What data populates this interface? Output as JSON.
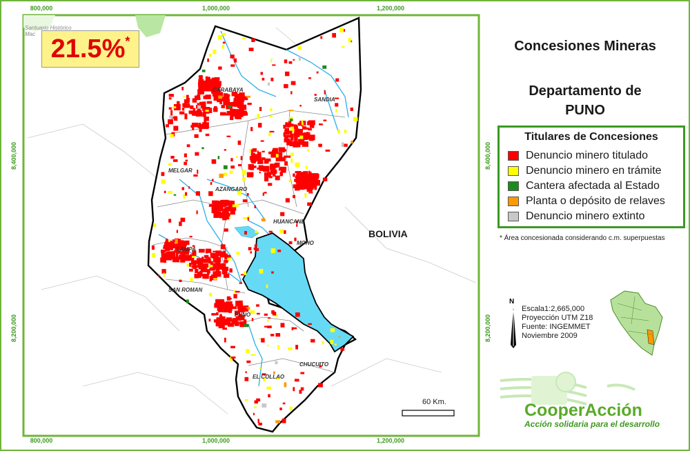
{
  "map": {
    "stat_value": "21.5%",
    "stat_mark": "*",
    "country_label": "BOLIVIA",
    "sanctuary_line1": "Santuario Histórico",
    "sanctuary_line2": "Mac",
    "provinces": [
      "CARABAYA",
      "SANDIA",
      "MELGAR",
      "AZANGARO",
      "HUANCANE",
      "MOHO",
      "LAMPA",
      "SAN ROMAN",
      "PUNO",
      "CHUCUITO",
      "EL COLLAO"
    ],
    "scalebar_label": "60 Km.",
    "colors": {
      "titulado": "#ff0000",
      "tramite": "#ffff00",
      "cantera": "#1f8a1f",
      "planta": "#ff9900",
      "extinto": "#c8c8c8",
      "lake": "#66d9f5",
      "river": "#2aaee8",
      "border": "#000000"
    }
  },
  "axes": {
    "x_ticks": [
      "800,000",
      "1,000,000",
      "1,200,000"
    ],
    "y_ticks": [
      "8,400,000",
      "8,200,000"
    ]
  },
  "panel": {
    "title": "Concesiones Mineras",
    "subtitle_line1": "Departamento de",
    "subtitle_line2": "PUNO",
    "legend_title": "Titulares de Concesiones",
    "legend": [
      {
        "label": "Denuncio minero titulado",
        "color": "#ff0000"
      },
      {
        "label": "Denuncio minero en trámite",
        "color": "#ffff00"
      },
      {
        "label": "Cantera afectada al Estado",
        "color": "#1f8a1f"
      },
      {
        "label": "Planta o depósito de relaves",
        "color": "#ff9900"
      },
      {
        "label": "Denuncio minero extinto",
        "color": "#c8c8c8"
      }
    ],
    "note": "* Área concesionada considerando c.m. superpuestas",
    "north_label": "N",
    "scale_label": "Escala",
    "scale_value": "1:2,665,000",
    "projection": "Proyección UTM Z18",
    "source": "Fuente: INGEMMET",
    "date": "Noviembre 2009"
  },
  "logo": {
    "name": "CooperAcción",
    "tagline": "Acción solidaria para el desarrollo"
  }
}
